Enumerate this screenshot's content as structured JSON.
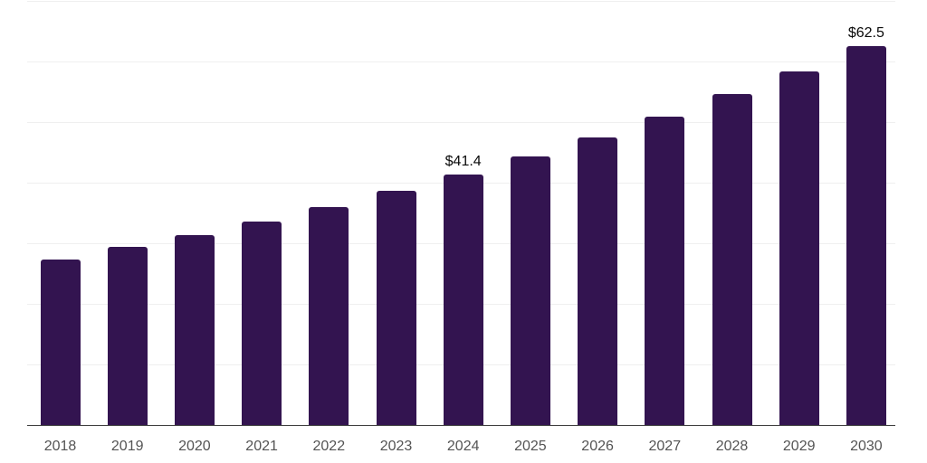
{
  "chart_data": {
    "type": "bar",
    "title": "",
    "xlabel": "",
    "ylabel": "",
    "categories": [
      "2018",
      "2019",
      "2020",
      "2021",
      "2022",
      "2023",
      "2024",
      "2025",
      "2026",
      "2027",
      "2028",
      "2029",
      "2030"
    ],
    "values": [
      27.3,
      29.4,
      31.4,
      33.6,
      36.0,
      38.6,
      41.4,
      44.3,
      47.4,
      50.9,
      54.6,
      58.3,
      62.5
    ],
    "data_labels": {
      "2024": "$41.4",
      "2030": "$62.5"
    },
    "ylim": [
      0,
      70
    ],
    "gridline_interval": 10,
    "grid": "horizontal",
    "legend": "none",
    "y_axis_labels_visible": false,
    "colors": {
      "bar": "#331450",
      "gridline": "#efefef",
      "axis": "#3f3f3f",
      "tick_label": "#545454",
      "data_label": "#0a0a0a",
      "background": "#ffffff"
    }
  }
}
